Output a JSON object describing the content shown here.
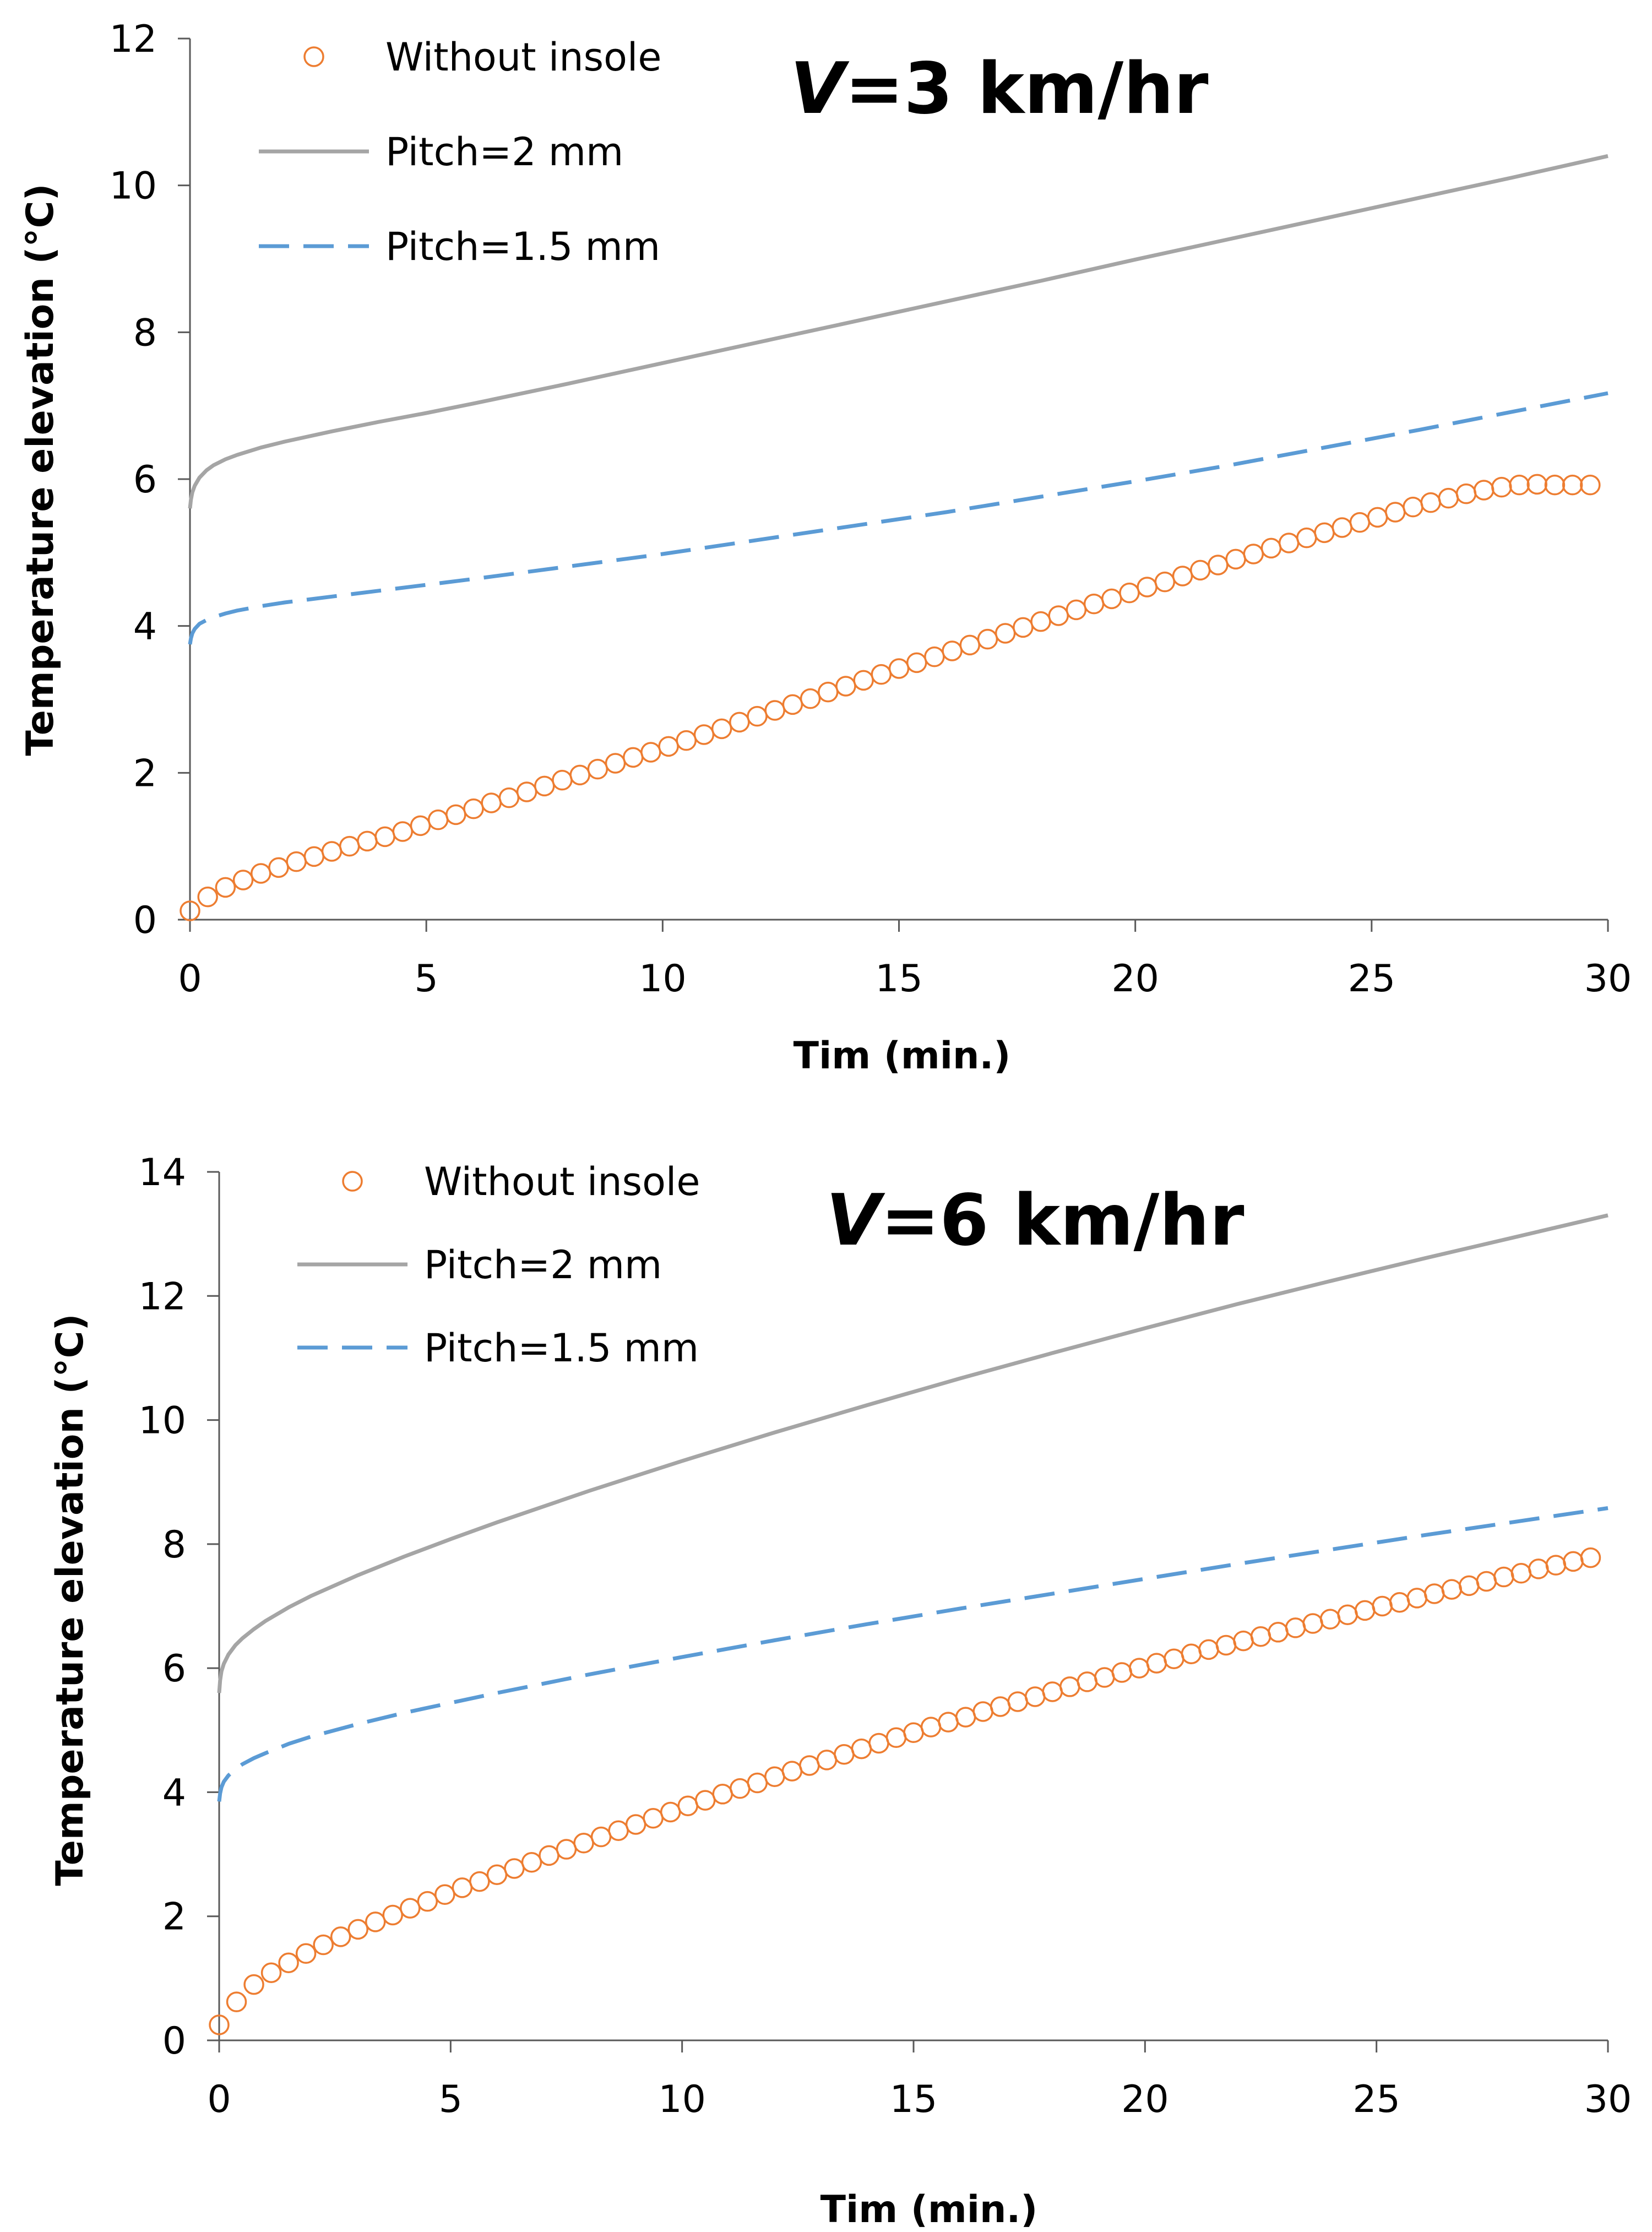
{
  "chart_data": [
    {
      "type": "line",
      "title_var": "V",
      "title_rest": "=3 km/hr",
      "xlabel": "Tim (min.)",
      "ylabel": "Temperature elevation (°C)",
      "xlim": [
        0,
        30
      ],
      "ylim": [
        0,
        12
      ],
      "xticks": [
        0,
        5,
        10,
        15,
        20,
        25,
        30
      ],
      "yticks": [
        0,
        2,
        4,
        6,
        8,
        10,
        12
      ],
      "grid": false,
      "legend_position": "top-left",
      "series": [
        {
          "name": "Without insole",
          "style": "markers",
          "marker": "open-circle",
          "color": "#ED7D31",
          "x": [
            0,
            0.375,
            0.75,
            1.125,
            1.5,
            1.875,
            2.25,
            2.625,
            3,
            3.375,
            3.75,
            4.125,
            4.5,
            4.875,
            5.25,
            5.625,
            6,
            6.375,
            6.75,
            7.125,
            7.5,
            7.875,
            8.25,
            8.625,
            9,
            9.375,
            9.75,
            10.125,
            10.5,
            10.875,
            11.25,
            11.625,
            12,
            12.375,
            12.75,
            13.125,
            13.5,
            13.875,
            14.25,
            14.625,
            15,
            15.375,
            15.75,
            16.125,
            16.5,
            16.875,
            17.25,
            17.625,
            18,
            18.375,
            18.75,
            19.125,
            19.5,
            19.875,
            20.25,
            20.625,
            21,
            21.375,
            21.75,
            22.125,
            22.5,
            22.875,
            23.25,
            23.625,
            24,
            24.375,
            24.75,
            25.125,
            25.5,
            25.875,
            26.25,
            26.625,
            27,
            27.375,
            27.75,
            28.125,
            28.5,
            28.875,
            29.25,
            29.625
          ],
          "y": [
            0.12,
            0.31,
            0.44,
            0.54,
            0.63,
            0.71,
            0.79,
            0.86,
            0.93,
            1,
            1.07,
            1.13,
            1.2,
            1.28,
            1.36,
            1.43,
            1.51,
            1.59,
            1.66,
            1.74,
            1.82,
            1.9,
            1.97,
            2.05,
            2.13,
            2.21,
            2.28,
            2.36,
            2.44,
            2.52,
            2.6,
            2.69,
            2.77,
            2.85,
            2.93,
            3.01,
            3.1,
            3.18,
            3.26,
            3.34,
            3.42,
            3.5,
            3.58,
            3.66,
            3.74,
            3.82,
            3.9,
            3.98,
            4.06,
            4.14,
            4.22,
            4.3,
            4.37,
            4.45,
            4.53,
            4.6,
            4.68,
            4.76,
            4.83,
            4.91,
            4.98,
            5.06,
            5.13,
            5.2,
            5.27,
            5.34,
            5.41,
            5.48,
            5.55,
            5.62,
            5.68,
            5.74,
            5.8,
            5.85,
            5.89,
            5.92,
            5.93,
            5.92,
            5.92,
            5.92
          ]
        },
        {
          "name": "Pitch=2 mm",
          "style": "solid",
          "color": "#A5A5A5",
          "x": [
            0,
            0.02,
            0.05,
            0.1,
            0.2,
            0.35,
            0.5,
            0.75,
            1,
            1.5,
            2,
            3,
            4,
            5,
            6,
            8,
            10,
            12,
            14,
            16,
            18,
            20,
            22,
            24,
            26,
            28,
            30
          ],
          "y": [
            5.6,
            5.72,
            5.82,
            5.91,
            6.02,
            6.12,
            6.19,
            6.27,
            6.33,
            6.43,
            6.51,
            6.65,
            6.78,
            6.9,
            7.03,
            7.3,
            7.58,
            7.86,
            8.14,
            8.42,
            8.7,
            8.99,
            9.27,
            9.55,
            9.83,
            10.11,
            10.4
          ]
        },
        {
          "name": "Pitch=1.5 mm",
          "style": "dashed",
          "color": "#5B9BD5",
          "x": [
            0,
            0.02,
            0.05,
            0.1,
            0.2,
            0.35,
            0.5,
            0.75,
            1,
            1.5,
            2,
            3,
            4,
            5,
            6,
            8,
            10,
            12,
            14,
            16,
            18,
            20,
            22,
            24,
            26,
            28,
            30
          ],
          "y": [
            3.75,
            3.83,
            3.9,
            3.96,
            4.03,
            4.08,
            4.12,
            4.17,
            4.21,
            4.27,
            4.32,
            4.4,
            4.48,
            4.56,
            4.64,
            4.81,
            4.98,
            5.17,
            5.36,
            5.55,
            5.76,
            5.97,
            6.19,
            6.43,
            6.67,
            6.92,
            7.17
          ]
        }
      ]
    },
    {
      "type": "line",
      "title_var": "V",
      "title_rest": "=6 km/hr",
      "xlabel": "Tim (min.)",
      "ylabel": "Temperature elevation (°C)",
      "xlim": [
        0,
        30
      ],
      "ylim": [
        0,
        14
      ],
      "xticks": [
        0,
        5,
        10,
        15,
        20,
        25,
        30
      ],
      "yticks": [
        0,
        2,
        4,
        6,
        8,
        10,
        12,
        14
      ],
      "grid": false,
      "legend_position": "top-left",
      "series": [
        {
          "name": "Without insole",
          "style": "markers",
          "marker": "open-circle",
          "color": "#ED7D31",
          "x": [
            0,
            0.375,
            0.75,
            1.125,
            1.5,
            1.875,
            2.25,
            2.625,
            3,
            3.375,
            3.75,
            4.125,
            4.5,
            4.875,
            5.25,
            5.625,
            6,
            6.375,
            6.75,
            7.125,
            7.5,
            7.875,
            8.25,
            8.625,
            9,
            9.375,
            9.75,
            10.125,
            10.5,
            10.875,
            11.25,
            11.625,
            12,
            12.375,
            12.75,
            13.125,
            13.5,
            13.875,
            14.25,
            14.625,
            15,
            15.375,
            15.75,
            16.125,
            16.5,
            16.875,
            17.25,
            17.625,
            18,
            18.375,
            18.75,
            19.125,
            19.5,
            19.875,
            20.25,
            20.625,
            21,
            21.375,
            21.75,
            22.125,
            22.5,
            22.875,
            23.25,
            23.625,
            24,
            24.375,
            24.75,
            25.125,
            25.5,
            25.875,
            26.25,
            26.625,
            27,
            27.375,
            27.75,
            28.125,
            28.5,
            28.875,
            29.25,
            29.625
          ],
          "y": [
            0.25,
            0.62,
            0.9,
            1.09,
            1.25,
            1.4,
            1.54,
            1.67,
            1.79,
            1.91,
            2.02,
            2.13,
            2.24,
            2.35,
            2.46,
            2.56,
            2.67,
            2.77,
            2.87,
            2.98,
            3.08,
            3.18,
            3.28,
            3.38,
            3.48,
            3.58,
            3.68,
            3.78,
            3.87,
            3.97,
            4.06,
            4.15,
            4.25,
            4.34,
            4.43,
            4.52,
            4.61,
            4.7,
            4.79,
            4.88,
            4.96,
            5.05,
            5.13,
            5.21,
            5.3,
            5.38,
            5.46,
            5.54,
            5.62,
            5.7,
            5.78,
            5.85,
            5.93,
            6,
            6.08,
            6.15,
            6.23,
            6.3,
            6.37,
            6.44,
            6.51,
            6.58,
            6.65,
            6.72,
            6.79,
            6.86,
            6.93,
            7,
            7.06,
            7.13,
            7.2,
            7.27,
            7.33,
            7.4,
            7.47,
            7.53,
            7.6,
            7.66,
            7.72,
            7.78
          ]
        },
        {
          "name": "Pitch=2 mm",
          "style": "solid",
          "color": "#A5A5A5",
          "x": [
            0,
            0.02,
            0.05,
            0.1,
            0.2,
            0.35,
            0.5,
            0.75,
            1,
            1.5,
            2,
            3,
            4,
            5,
            6,
            8,
            10,
            12,
            14,
            16,
            18,
            20,
            22,
            24,
            26,
            28,
            30
          ],
          "y": [
            5.6,
            5.8,
            5.95,
            6.07,
            6.22,
            6.37,
            6.48,
            6.63,
            6.76,
            6.98,
            7.17,
            7.5,
            7.8,
            8.08,
            8.35,
            8.86,
            9.34,
            9.8,
            10.24,
            10.67,
            11.08,
            11.48,
            11.87,
            12.24,
            12.6,
            12.95,
            13.3
          ]
        },
        {
          "name": "Pitch=1.5 mm",
          "style": "dashed",
          "color": "#5B9BD5",
          "x": [
            0,
            0.02,
            0.05,
            0.1,
            0.2,
            0.35,
            0.5,
            0.75,
            1,
            1.5,
            2,
            3,
            4,
            5,
            6,
            8,
            10,
            12,
            14,
            16,
            18,
            20,
            22,
            24,
            26,
            28,
            30
          ],
          "y": [
            3.85,
            3.98,
            4.08,
            4.17,
            4.27,
            4.37,
            4.45,
            4.55,
            4.63,
            4.78,
            4.9,
            5.1,
            5.28,
            5.44,
            5.6,
            5.9,
            6.18,
            6.45,
            6.71,
            6.96,
            7.2,
            7.44,
            7.68,
            7.91,
            8.14,
            8.36,
            8.58
          ]
        }
      ]
    }
  ]
}
